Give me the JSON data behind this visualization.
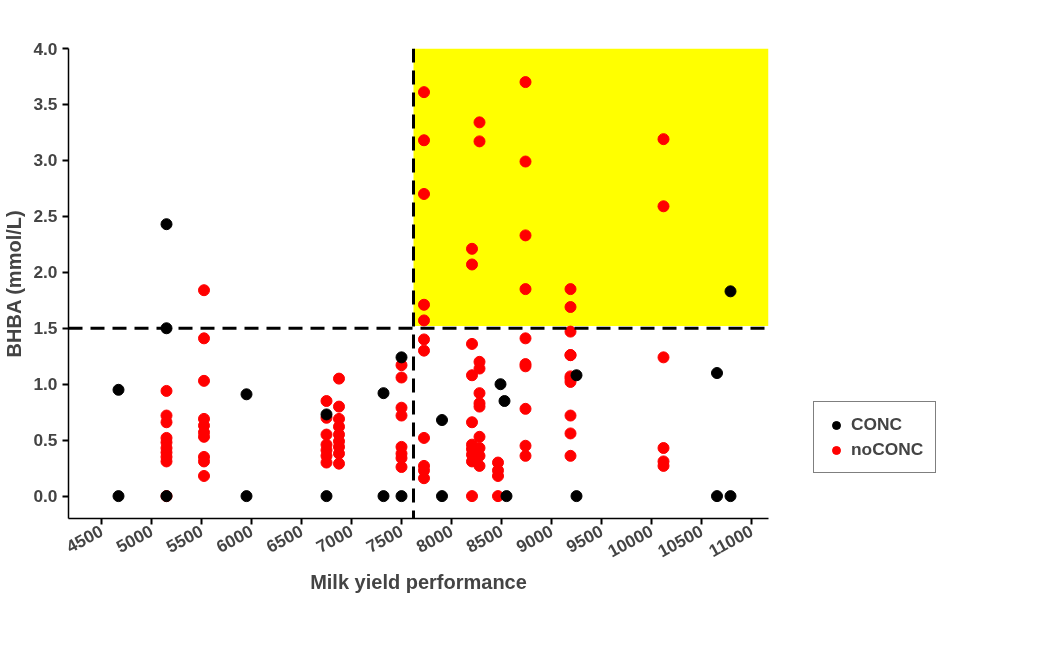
{
  "chart_data": {
    "type": "scatter",
    "xlabel": "Milk yield performance",
    "ylabel": "BHBA (mmol/L)",
    "xlim": [
      4170,
      11170
    ],
    "ylim": [
      -0.2,
      4.0
    ],
    "xticks": [
      4500,
      5000,
      5500,
      6000,
      6500,
      7000,
      7500,
      8000,
      8500,
      9000,
      9500,
      10000,
      10500,
      11000
    ],
    "yticks": [
      {
        "value": 0,
        "label": "0.0"
      },
      0.5,
      {
        "value": 1,
        "label": "1.0"
      },
      1.5,
      {
        "value": 2,
        "label": "2.0"
      },
      2.5,
      {
        "value": 3,
        "label": "3.0"
      },
      3.5,
      {
        "value": 4,
        "label": "4.0"
      }
    ],
    "grid": false,
    "legend": "right",
    "marker": "circle",
    "bands": [
      {
        "axis": "y",
        "from": 1.52,
        "to": 4.0,
        "color": "#ffff00"
      }
    ],
    "ref_lines": [
      {
        "axis": "y",
        "value": 1.5,
        "color": "#000000",
        "line_style": "dashed"
      },
      {
        "axis": "x",
        "value": 7620,
        "color": "#000000",
        "line_style": "dashed"
      }
    ],
    "series": [
      {
        "name": "CONC",
        "color": "#000000",
        "x": [
          4670,
          4670,
          5150,
          5150,
          5150,
          5950,
          5950,
          6750,
          6750,
          7320,
          7320,
          7500,
          7500,
          7905,
          7905,
          8490,
          8530,
          8550,
          9250,
          9250,
          10655,
          10655,
          10790,
          10790
        ],
        "values": [
          0.95,
          0,
          2.43,
          1.5,
          0,
          0.91,
          0,
          0.73,
          0,
          0.92,
          0,
          1.24,
          0,
          0.68,
          0,
          1.0,
          0.85,
          0,
          1.08,
          0,
          1.1,
          0,
          1.83,
          0
        ]
      },
      {
        "name": "noCONC",
        "color": "#ff0000",
        "x": [
          5150,
          5150,
          5150,
          5150,
          5150,
          5150,
          5150,
          5150,
          5150,
          5150,
          5525,
          5525,
          5525,
          5525,
          5525,
          5525,
          5525,
          5525,
          5525,
          5525,
          6750,
          6750,
          6750,
          6750,
          6750,
          6750,
          6750,
          6875,
          6875,
          6875,
          6875,
          6875,
          6875,
          6875,
          6875,
          6875,
          7500,
          7500,
          7500,
          7500,
          7500,
          7500,
          7500,
          7500,
          7725,
          7725,
          7725,
          7725,
          7725,
          7725,
          7725,
          7725,
          7725,
          7725,
          7725,
          8205,
          8205,
          8205,
          8205,
          8205,
          8205,
          8205,
          8205,
          8205,
          8205,
          8280,
          8280,
          8280,
          8280,
          8280,
          8280,
          8280,
          8280,
          8280,
          8280,
          8280,
          8465,
          8465,
          8465,
          8465,
          8740,
          8740,
          8740,
          8740,
          8740,
          8740,
          8740,
          8740,
          8740,
          8740,
          9190,
          9190,
          9190,
          9190,
          9190,
          9190,
          9190,
          9190,
          9190,
          9190,
          9190,
          10120,
          10120,
          10120,
          10120,
          10120,
          10120
        ],
        "values": [
          0.94,
          0.72,
          0.66,
          0.52,
          0.48,
          0.43,
          0.39,
          0.35,
          0.31,
          0,
          1.84,
          1.41,
          1.03,
          0.69,
          0.63,
          0.57,
          0.53,
          0.35,
          0.31,
          0.18,
          0.85,
          0.7,
          0.55,
          0.46,
          0.41,
          0.36,
          0.3,
          1.05,
          0.8,
          0.69,
          0.62,
          0.55,
          0.49,
          0.44,
          0.38,
          0.29,
          1.17,
          1.06,
          0.79,
          0.72,
          0.44,
          0.38,
          0.34,
          0.26,
          3.61,
          3.18,
          2.7,
          1.71,
          1.57,
          1.4,
          1.3,
          0.52,
          0.27,
          0.23,
          0.16,
          2.21,
          2.07,
          1.36,
          1.08,
          0.66,
          0.46,
          0.42,
          0.37,
          0.31,
          0,
          3.34,
          3.17,
          1.2,
          1.14,
          0.92,
          0.83,
          0.8,
          0.53,
          0.43,
          0.36,
          0.27,
          0.3,
          0.23,
          0.18,
          0,
          3.7,
          2.99,
          2.33,
          1.85,
          1.41,
          1.18,
          1.16,
          0.78,
          0.45,
          0.36,
          1.85,
          1.69,
          1.47,
          1.26,
          1.07,
          1.05,
          1.02,
          0.72,
          0.56,
          0.36,
          1.26,
          3.19,
          2.59,
          1.24,
          0.43,
          0.31,
          0.27
        ]
      }
    ]
  }
}
